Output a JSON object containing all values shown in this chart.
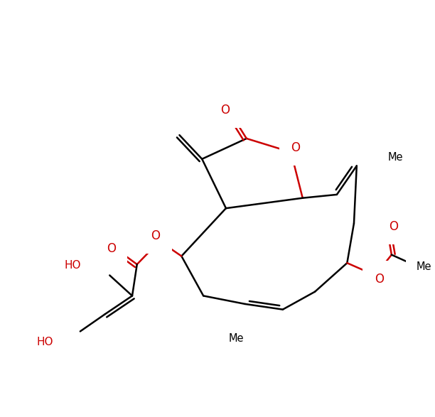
{
  "bg_color": "#ffffff",
  "bond_color": "#000000",
  "red_color": "#cc0000",
  "lw": 1.8,
  "atoms": {
    "note": "All coordinates in 600x600 pixel space, y=0 at top"
  }
}
